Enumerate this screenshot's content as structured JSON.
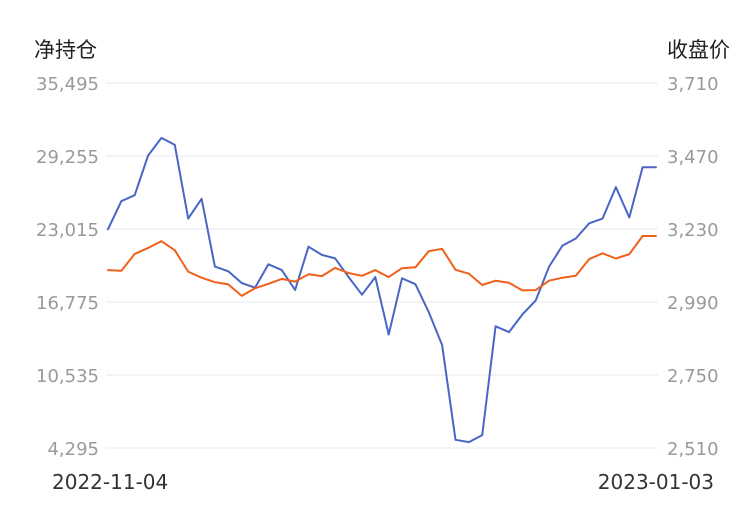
{
  "chart_data": {
    "type": "line",
    "left_axis": {
      "title": "净持仓",
      "ticks": [
        "35,495",
        "29,255",
        "23,015",
        "16,775",
        "10,535",
        "4,295"
      ],
      "range": [
        4295,
        35495
      ]
    },
    "right_axis": {
      "title": "收盘价",
      "ticks": [
        "3,710",
        "3,470",
        "3,230",
        "2,990",
        "2,750",
        "2,510"
      ],
      "range": [
        2510,
        3710
      ]
    },
    "x_labels": [
      "2022-11-04",
      "2023-01-03"
    ],
    "grid": true,
    "series": [
      {
        "axis": "left",
        "color": "#4a66c4",
        "values": [
          23000,
          25400,
          25900,
          29300,
          30800,
          30200,
          23900,
          25600,
          19800,
          19400,
          18400,
          18000,
          20000,
          19500,
          17800,
          21500,
          20800,
          20500,
          18900,
          17400,
          18900,
          14000,
          18800,
          18300,
          15900,
          13100,
          5000,
          4800,
          5400,
          14700,
          14200,
          15700,
          16900,
          19800,
          21600,
          22200,
          23500,
          23900,
          26600,
          24000,
          28300,
          28300
        ]
      },
      {
        "axis": "right",
        "color": "#f0601a",
        "values": [
          3095,
          3093,
          3148,
          3168,
          3190,
          3160,
          3090,
          3070,
          3055,
          3048,
          3010,
          3035,
          3050,
          3066,
          3057,
          3081,
          3075,
          3102,
          3085,
          3076,
          3095,
          3072,
          3101,
          3104,
          3157,
          3165,
          3096,
          3083,
          3046,
          3060,
          3053,
          3028,
          3029,
          3060,
          3070,
          3076,
          3131,
          3150,
          3133,
          3147,
          3207,
          3207
        ]
      }
    ]
  }
}
